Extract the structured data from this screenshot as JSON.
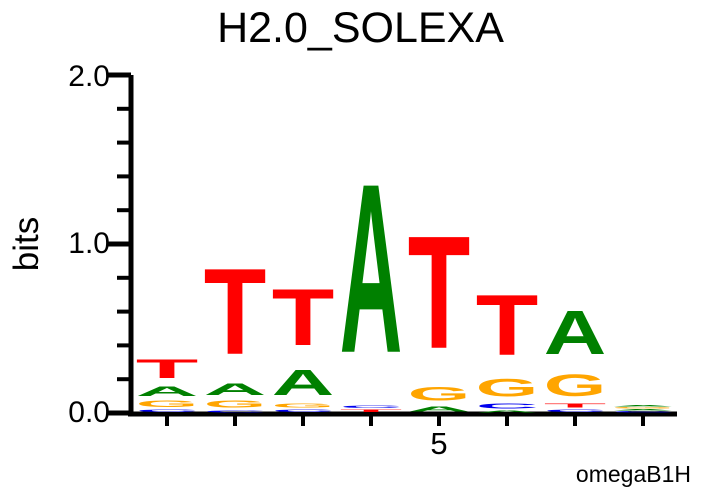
{
  "title": "H2.0_SOLEXA",
  "footer_label": "omegaB1H",
  "y_axis": {
    "label": "bits",
    "tick_labels": [
      "2.0",
      "1.0",
      "0.0"
    ]
  },
  "x_axis": {
    "tick_label": "5"
  },
  "colors": {
    "A": "#008000",
    "C": "#0000EE",
    "G": "#FFA500",
    "T": "#FF0000",
    "axis": "#000000"
  },
  "chart_data": {
    "type": "bar",
    "variant": "dna-sequence-logo-stacked-letters",
    "title": "H2.0_SOLEXA",
    "ylabel": "bits",
    "ylim": [
      0,
      2.0
    ],
    "y_major_ticks": [
      0.0,
      1.0,
      2.0
    ],
    "y_minor_tick_step": 0.2,
    "num_positions": 8,
    "x_labeled_position": 5,
    "legend": "none",
    "positions": [
      {
        "pos": 1,
        "stack": [
          {
            "letter": "C",
            "bits": 0.025
          },
          {
            "letter": "G",
            "bits": 0.059
          },
          {
            "letter": "A",
            "bits": 0.089
          },
          {
            "letter": "T",
            "bits": 0.177
          }
        ]
      },
      {
        "pos": 2,
        "stack": [
          {
            "letter": "C",
            "bits": 0.02
          },
          {
            "letter": "G",
            "bits": 0.065
          },
          {
            "letter": "A",
            "bits": 0.107
          },
          {
            "letter": "T",
            "bits": 0.81
          }
        ]
      },
      {
        "pos": 3,
        "stack": [
          {
            "letter": "C",
            "bits": 0.024
          },
          {
            "letter": "G",
            "bits": 0.036
          },
          {
            "letter": "A",
            "bits": 0.237
          },
          {
            "letter": "T",
            "bits": 0.533
          }
        ]
      },
      {
        "pos": 4,
        "stack": [
          {
            "letter": "T",
            "bits": 0.024
          },
          {
            "letter": "C",
            "bits": 0.024
          },
          {
            "letter": "A",
            "bits": 1.6
          }
        ]
      },
      {
        "pos": 5,
        "stack": [
          {
            "letter": "A",
            "bits": 0.047
          },
          {
            "letter": "G",
            "bits": 0.13
          },
          {
            "letter": "T",
            "bits": 1.065
          }
        ]
      },
      {
        "pos": 6,
        "stack": [
          {
            "letter": "A",
            "bits": 0.018
          },
          {
            "letter": "C",
            "bits": 0.047
          },
          {
            "letter": "G",
            "bits": 0.166
          },
          {
            "letter": "T",
            "bits": 0.574
          }
        ]
      },
      {
        "pos": 7,
        "stack": [
          {
            "letter": "C",
            "bits": 0.024
          },
          {
            "letter": "T",
            "bits": 0.036
          },
          {
            "letter": "G",
            "bits": 0.207
          },
          {
            "letter": "A",
            "bits": 0.414
          }
        ]
      },
      {
        "pos": 8,
        "stack": [
          {
            "letter": "C",
            "bits": 0.012
          },
          {
            "letter": "A",
            "bits": 0.012
          },
          {
            "letter": "G",
            "bits": 0.012
          },
          {
            "letter": "A",
            "bits": 0.013
          }
        ]
      }
    ]
  }
}
